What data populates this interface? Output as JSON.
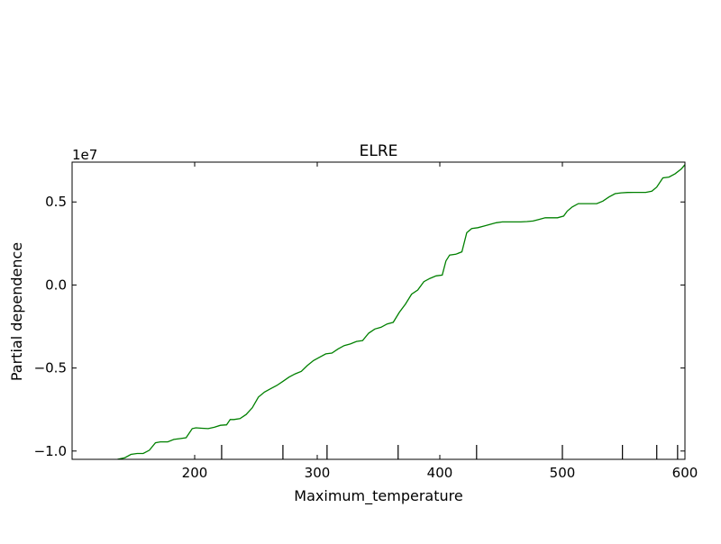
{
  "chart_data": {
    "type": "line",
    "title": "ELRE",
    "xlabel": "Maximum_temperature",
    "ylabel": "Partial dependence",
    "y_offset_label": "1e7",
    "xlim": [
      100,
      600
    ],
    "ylim": [
      -10500000,
      7400000
    ],
    "xticks": [
      200,
      300,
      400,
      500,
      600
    ],
    "yticks": [
      -10000000,
      -5000000,
      0,
      5000000
    ],
    "ytick_labels": [
      "−1.0",
      "−0.5",
      "0.0",
      "0.5"
    ],
    "grid": false,
    "line_color": "#008000",
    "rug_x": [
      222,
      272,
      308,
      366,
      430,
      500,
      549,
      577,
      594
    ],
    "series": [
      {
        "x": [
          137,
          143,
          148,
          153,
          158,
          163,
          168,
          172,
          178,
          183,
          188,
          193,
          198,
          201,
          206,
          211,
          216,
          221,
          226,
          229,
          232,
          237,
          242,
          247,
          252,
          257,
          262,
          267,
          272,
          277,
          282,
          287,
          292,
          297,
          302,
          307,
          312,
          317,
          322,
          327,
          332,
          337,
          342,
          347,
          352,
          357,
          362,
          367,
          372,
          377,
          382,
          387,
          392,
          397,
          402,
          405,
          408,
          413,
          418,
          422,
          426,
          431,
          436,
          441,
          446,
          451,
          456,
          461,
          466,
          471,
          476,
          481,
          486,
          491,
          496,
          501,
          504,
          508,
          513,
          518,
          523,
          528,
          533,
          538,
          543,
          548,
          553,
          558,
          563,
          568,
          573,
          577,
          582,
          587,
          592,
          597,
          600
        ],
        "y": [
          -10500000,
          -10400000,
          -10200000,
          -10150000,
          -10150000,
          -9950000,
          -9500000,
          -9450000,
          -9450000,
          -9300000,
          -9250000,
          -9200000,
          -8650000,
          -8600000,
          -8630000,
          -8650000,
          -8570000,
          -8450000,
          -8420000,
          -8100000,
          -8100000,
          -8050000,
          -7800000,
          -7400000,
          -6750000,
          -6450000,
          -6250000,
          -6050000,
          -5800000,
          -5550000,
          -5350000,
          -5200000,
          -4850000,
          -4550000,
          -4350000,
          -4150000,
          -4100000,
          -3850000,
          -3650000,
          -3550000,
          -3400000,
          -3350000,
          -2900000,
          -2650000,
          -2550000,
          -2350000,
          -2250000,
          -1650000,
          -1150000,
          -550000,
          -300000,
          200000,
          400000,
          550000,
          600000,
          1450000,
          1800000,
          1850000,
          2000000,
          3150000,
          3400000,
          3450000,
          3550000,
          3650000,
          3750000,
          3800000,
          3800000,
          3800000,
          3800000,
          3820000,
          3850000,
          3950000,
          4050000,
          4050000,
          4050000,
          4150000,
          4450000,
          4700000,
          4900000,
          4900000,
          4900000,
          4900000,
          5050000,
          5300000,
          5500000,
          5550000,
          5570000,
          5580000,
          5580000,
          5580000,
          5650000,
          5900000,
          6450000,
          6500000,
          6700000,
          6980000,
          7250000
        ]
      }
    ]
  }
}
